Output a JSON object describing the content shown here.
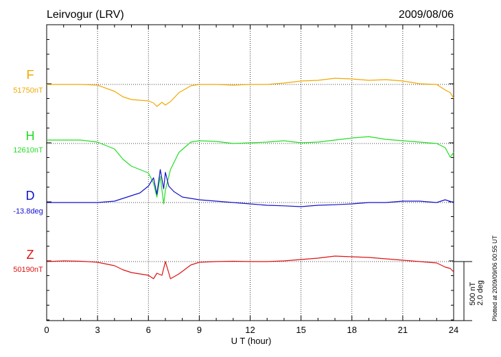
{
  "chart_data": {
    "type": "line",
    "title": "Leirvogur (LRV)",
    "date": "2009/08/06",
    "xlabel": "U T (hour)",
    "xlim": [
      0,
      24
    ],
    "x_ticks": [
      "0",
      "3",
      "6",
      "9",
      "12",
      "15",
      "18",
      "21",
      "24"
    ],
    "grid": true,
    "scale_bar_label_1": "500 nT",
    "scale_bar_label_2": "2.0 deg",
    "plotted_note": "Plotted at 2009/09/06 00:55 UT",
    "series": [
      {
        "name": "F",
        "baseline_label": "51750nT",
        "color": "#f0a800",
        "x": [
          0,
          2,
          3,
          4,
          4.5,
          5,
          5.5,
          6,
          6.3,
          6.5,
          6.8,
          7,
          7.3,
          7.8,
          8.5,
          9,
          10,
          11,
          12,
          13,
          14,
          15,
          16,
          17,
          18,
          19,
          20,
          21,
          22,
          23,
          23.5,
          23.8,
          24
        ],
        "values": [
          0,
          0,
          -10,
          -100,
          -180,
          -220,
          -230,
          -240,
          -270,
          -320,
          -260,
          -300,
          -250,
          -120,
          -20,
          0,
          0,
          -10,
          0,
          0,
          20,
          50,
          60,
          90,
          80,
          60,
          70,
          50,
          10,
          0,
          -80,
          -120,
          -200
        ]
      },
      {
        "name": "H",
        "baseline_label": "12610nT",
        "color": "#22dd22",
        "x": [
          0,
          2,
          3,
          4,
          4.5,
          5,
          5.5,
          6,
          6.3,
          6.5,
          6.7,
          6.9,
          7,
          7.3,
          7.8,
          8.5,
          9,
          10,
          11,
          12,
          13,
          14,
          15,
          16,
          17,
          18,
          19,
          20,
          21,
          22,
          23,
          23.5,
          23.8,
          24
        ],
        "values": [
          30,
          30,
          0,
          -100,
          -250,
          -350,
          -400,
          -450,
          -600,
          -800,
          -500,
          -900,
          -700,
          -400,
          -150,
          0,
          20,
          10,
          -20,
          -10,
          0,
          20,
          -10,
          0,
          30,
          60,
          80,
          40,
          20,
          0,
          -20,
          -80,
          -220,
          -150
        ]
      },
      {
        "name": "D",
        "baseline_label": "-13.8deg",
        "color": "#1010cc",
        "x": [
          0,
          3,
          4,
          5,
          5.5,
          6,
          6.3,
          6.5,
          6.7,
          6.9,
          7,
          7.2,
          7.5,
          8,
          9,
          10,
          11,
          12,
          13,
          14,
          15,
          16,
          17,
          18,
          19,
          20,
          21,
          22,
          23,
          23.5,
          24
        ],
        "values": [
          0,
          0,
          0.05,
          0.25,
          0.35,
          0.6,
          0.9,
          0.3,
          1.2,
          0.5,
          1.1,
          0.6,
          0.4,
          0.2,
          0.1,
          0.05,
          0,
          -0.05,
          -0.1,
          -0.12,
          -0.15,
          -0.1,
          -0.08,
          -0.05,
          0,
          0,
          0.05,
          0.05,
          0,
          0.1,
          0
        ]
      },
      {
        "name": "Z",
        "baseline_label": "50190nT",
        "color": "#dd1111",
        "x": [
          0,
          1,
          2,
          3,
          4,
          4.5,
          5,
          5.5,
          6,
          6.3,
          6.5,
          6.8,
          7,
          7.3,
          7.8,
          8.5,
          9,
          10,
          11,
          12,
          13,
          14,
          15,
          16,
          17,
          18,
          19,
          20,
          21,
          22,
          23,
          23.5,
          23.8,
          24
        ],
        "values": [
          0,
          10,
          5,
          -10,
          -60,
          -120,
          -160,
          -180,
          -200,
          -250,
          -170,
          -200,
          0,
          -250,
          -180,
          -50,
          -10,
          0,
          5,
          0,
          0,
          10,
          30,
          50,
          80,
          70,
          60,
          40,
          20,
          0,
          -20,
          -80,
          -100,
          -150
        ]
      }
    ]
  }
}
